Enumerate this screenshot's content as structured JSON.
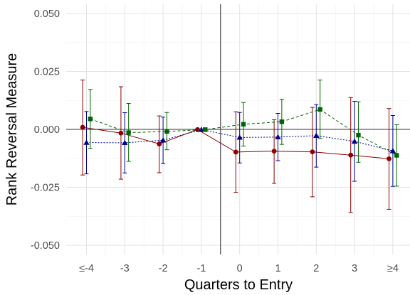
{
  "chart_data": {
    "type": "scatter",
    "xlabel": "Quarters to Entry",
    "ylabel": "Rank Reversal Measure",
    "categories": [
      "≤-4",
      "-3",
      "-2",
      "-1",
      "0",
      "1",
      "2",
      "3",
      "≥4"
    ],
    "yticks": [
      {
        "value": 0.05,
        "label": "0.050"
      },
      {
        "value": 0.025,
        "label": "0.025"
      },
      {
        "value": 0,
        "label": "0.000"
      },
      {
        "value": -0.025,
        "label": "-0.025"
      },
      {
        "value": -0.05,
        "label": "-0.050"
      }
    ],
    "ylim": [
      -0.054,
      0.054
    ],
    "grid": true,
    "reference_lines": {
      "y": 0,
      "x_between": [
        "-1",
        "0"
      ]
    },
    "series": [
      {
        "marker": "circle",
        "color": "#8b0000",
        "line": "solid",
        "offset": -0.1,
        "values": [
          0.0009,
          -0.0016,
          -0.0063,
          -0.0001,
          -0.0098,
          -0.0094,
          -0.0097,
          -0.0111,
          -0.0127
        ],
        "lower": [
          -0.0197,
          -0.0215,
          -0.0187,
          -0.0001,
          -0.0272,
          -0.0233,
          -0.0291,
          -0.0359,
          -0.0345
        ],
        "upper": [
          0.0213,
          0.0184,
          0.0058,
          -0.0001,
          0.0076,
          0.0042,
          0.0095,
          0.0137,
          0.009
        ]
      },
      {
        "marker": "triangle",
        "color": "#00008b",
        "line": "dotted",
        "offset": 0,
        "values": [
          -0.0057,
          -0.0058,
          -0.0047,
          -0.0001,
          -0.0035,
          -0.0033,
          -0.0027,
          -0.0052,
          -0.0093
        ],
        "lower": [
          -0.0192,
          -0.0188,
          -0.0148,
          -0.0001,
          -0.0145,
          -0.0135,
          -0.0163,
          -0.0224,
          -0.0246
        ],
        "upper": [
          0.0077,
          0.0072,
          0.0053,
          -0.0001,
          0.0073,
          0.0069,
          0.0107,
          0.0121,
          0.006
        ]
      },
      {
        "marker": "square",
        "color": "#006400",
        "line": "dashed",
        "offset": 0.1,
        "values": [
          0.0045,
          -0.0014,
          -0.0009,
          -0.0001,
          0.0022,
          0.0033,
          0.0086,
          -0.0025,
          -0.0112
        ],
        "lower": [
          -0.0082,
          -0.0138,
          -0.0088,
          -0.0001,
          -0.0072,
          -0.0065,
          -0.004,
          -0.0142,
          -0.0245
        ],
        "upper": [
          0.0172,
          0.0112,
          0.0073,
          -0.0001,
          0.0116,
          0.013,
          0.0213,
          0.0119,
          0.002
        ]
      }
    ]
  }
}
